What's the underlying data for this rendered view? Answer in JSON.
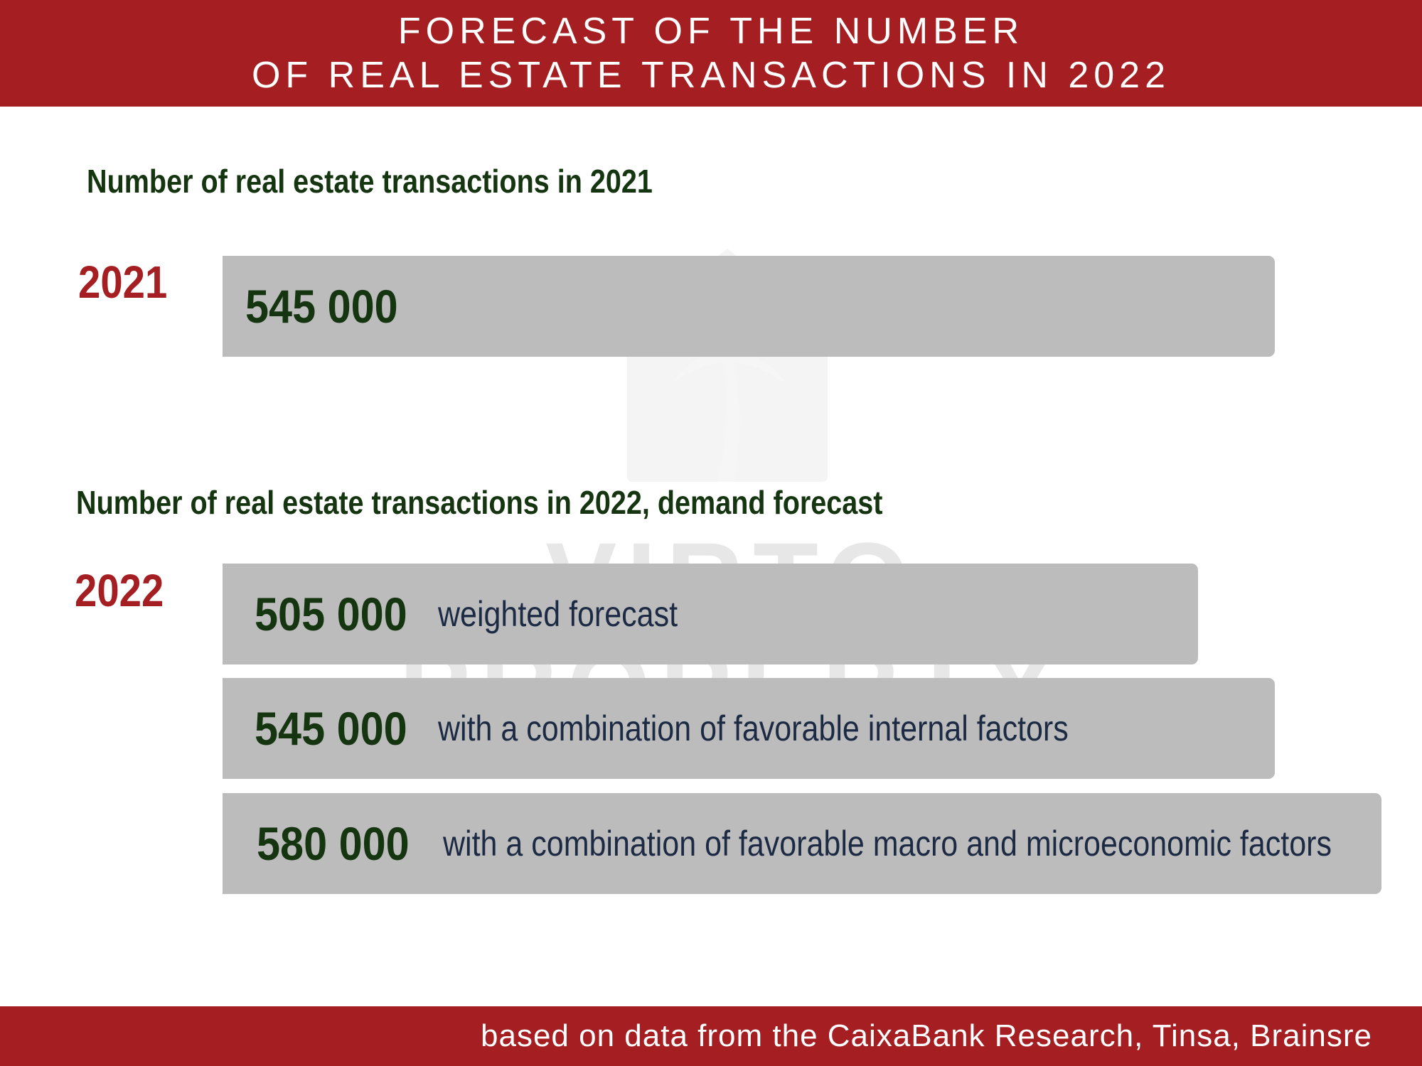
{
  "header": {
    "title_line1": "FORECAST OF THE NUMBER",
    "title_line2": "OF REAL ESTATE TRANSACTIONS IN 2022"
  },
  "watermark": {
    "line1": "VIRTO",
    "line2": "PROPERTY"
  },
  "section_2021": {
    "heading": "Number of real estate transactions in 2021",
    "year": "2021",
    "bars": [
      {
        "value_label": "545 000",
        "value": 545000,
        "description": ""
      }
    ]
  },
  "section_2022": {
    "heading": "Number of real estate transactions in 2022, demand forecast",
    "year": "2022",
    "bars": [
      {
        "value_label": "505 000",
        "value": 505000,
        "description": "weighted forecast"
      },
      {
        "value_label": "545 000",
        "value": 545000,
        "description": "with a combination of favorable internal factors"
      },
      {
        "value_label": "580 000",
        "value": 580000,
        "description": "with a combination of favorable macro and microeconomic factors"
      }
    ]
  },
  "footer": {
    "source": "based on data from the CaixaBank Research, Tinsa, Brainsre"
  },
  "chart_data": {
    "type": "bar",
    "orientation": "horizontal",
    "title": "FORECAST OF THE NUMBER OF REAL ESTATE TRANSACTIONS IN 2022",
    "categories": [
      "2021",
      "weighted forecast",
      "with a combination of favorable internal factors",
      "with a combination of favorable macro and microeconomic factors"
    ],
    "values": [
      545000,
      505000,
      545000,
      580000
    ],
    "groups": [
      "2021",
      "2022",
      "2022",
      "2022"
    ],
    "colors": {
      "bar": "#bcbcbc",
      "accent": "#a41e22",
      "value_text": "#153510",
      "desc_text": "#1c2a44"
    }
  }
}
